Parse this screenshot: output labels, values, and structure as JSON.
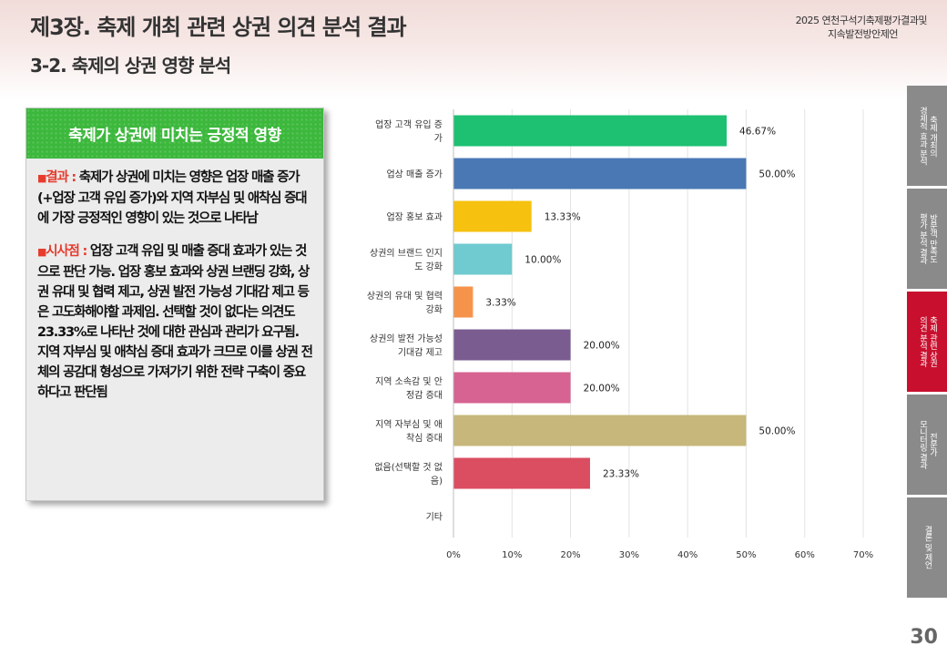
{
  "header": {
    "title": "제3장. 축제 개최 관련 상권 의견 분석 결과",
    "subtitle": "3-2. 축제의 상권 영향 분석",
    "right_line1": "2025 연천구석기축제평가결과및",
    "right_line2": "지속발전방안제언"
  },
  "panel": {
    "title": "축제가 상권에 미치는 긍정적 영향",
    "bullet": "■",
    "result_label": "결과 :",
    "result_text": " 축제가 상권에 미치는 영향은 업장 매출 증가(+업장 고객 유입 증가)와 지역 자부심 및 애착심 증대에 가장 긍정적인 영향이 있는 것으로 나타남",
    "implication_label": "시사점 :",
    "implication_text": " 업장 고객 유입 및 매출 증대 효과가 있는 것으로 판단 가능. 업장 홍보 효과와 상권 브랜딩 강화, 상권 유대 및 협력 제고, 상권 발전 가능성 기대감 제고 등은 고도화해야할 과제임. 선택할 것이 없다는 의견도 23.33%로 나타난 것에 대한 관심과 관리가 요구됨. 지역 자부심 및 애착심 증대 효과가 크므로 이를 상권 전체의 공감대 형성으로 가져가기 위한 전략 구축이 중요하다고 판단됨"
  },
  "tabs": [
    {
      "label": "축제 개최의\n경제적 효과 분석",
      "active": false
    },
    {
      "label": "방문객 만족도\n평가 분석 결과",
      "active": false
    },
    {
      "label": "축제 관련 상권\n의견 분석 결과",
      "active": true
    },
    {
      "label": "전문가\n모니터링 결과",
      "active": false
    },
    {
      "label": "결론 및 제언",
      "active": false
    }
  ],
  "page_number": "30",
  "chart_data": {
    "type": "bar",
    "orientation": "horizontal",
    "categories": [
      [
        "업장 고객 유입 증",
        "가"
      ],
      [
        "업상 매출 증가"
      ],
      [
        "업장 홍보 효과"
      ],
      [
        "상권의 브랜드 인지",
        "도 강화"
      ],
      [
        "상권의 유대 및 협력",
        "강화"
      ],
      [
        "상권의 발전 가능성",
        "기대감 제고"
      ],
      [
        "지역 소속감 및 안",
        "정감 증대"
      ],
      [
        "지역 자부심 및 애",
        "착심 증대"
      ],
      [
        "없음(선택할 것 없",
        "음)"
      ],
      [
        "기타"
      ]
    ],
    "values": [
      46.67,
      50.0,
      13.33,
      10.0,
      3.33,
      20.0,
      20.0,
      50.0,
      23.33,
      0
    ],
    "value_labels": [
      "46.67%",
      "50.00%",
      "13.33%",
      "10.00%",
      "3.33%",
      "20.00%",
      "20.00%",
      "50.00%",
      "23.33%",
      ""
    ],
    "colors": [
      "#1ec072",
      "#4a78b5",
      "#f6c10f",
      "#6fcbcf",
      "#f6934a",
      "#7a5c91",
      "#d66391",
      "#c7b77a",
      "#db4d60",
      "#999999"
    ],
    "xlim": [
      0,
      70
    ],
    "xticks": [
      "0%",
      "10%",
      "20%",
      "30%",
      "40%",
      "50%",
      "60%",
      "70%"
    ],
    "xtick_values": [
      0,
      10,
      20,
      30,
      40,
      50,
      60,
      70
    ],
    "grid": true
  }
}
